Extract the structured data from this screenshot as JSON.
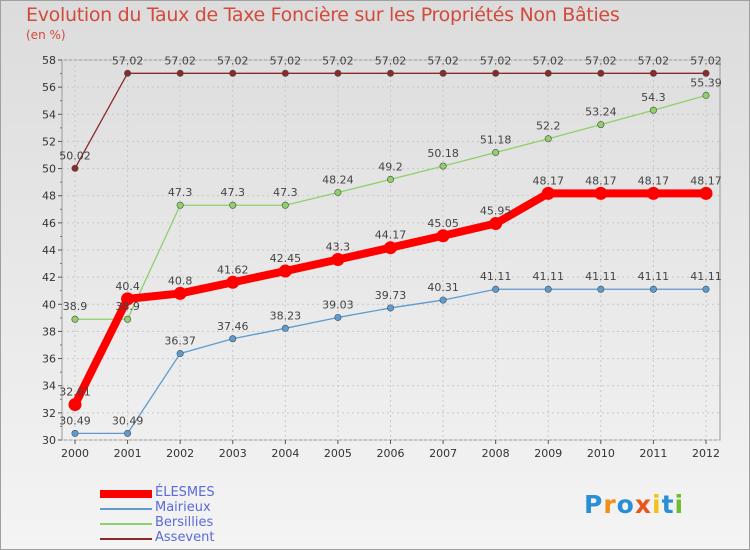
{
  "header": {
    "title": "Evolution du Taux de Taxe Foncière sur les Propriétés Non Bâties",
    "unit": "(en %)"
  },
  "brand": {
    "letters": [
      "P",
      "r",
      "o",
      "x",
      "i",
      "t",
      "i"
    ],
    "colors": [
      "#2a8fd6",
      "#f28c1a",
      "#2a8fd6",
      "#e8561c",
      "#f2c21a",
      "#2a8fd6",
      "#6cbf2a"
    ]
  },
  "chart_data": {
    "type": "line",
    "title": "Evolution du Taux de Taxe Foncière sur les Propriétés Non Bâties",
    "ylabel": "(en %)",
    "xlabel": "",
    "ylim": [
      30,
      58
    ],
    "yticks": [
      30,
      32,
      34,
      36,
      38,
      40,
      42,
      44,
      46,
      48,
      50,
      52,
      54,
      56,
      58
    ],
    "categories": [
      "2000",
      "2001",
      "2002",
      "2003",
      "2004",
      "2005",
      "2006",
      "2007",
      "2008",
      "2009",
      "2010",
      "2011",
      "2012"
    ],
    "grid": true,
    "legend": "bottom-left",
    "series": [
      {
        "name": "ÉLESMES",
        "color": "#ff0000",
        "values": [
          32.61,
          40.4,
          40.8,
          41.62,
          42.45,
          43.3,
          44.17,
          45.05,
          45.95,
          48.17,
          48.17,
          48.17,
          48.17
        ],
        "labels": [
          "32.61",
          "40.4",
          "40.8",
          "41.62",
          "42.45",
          "43.3",
          "44.17",
          "45.05",
          "45.95",
          "48.17",
          "48.17",
          "48.17",
          "48.17"
        ]
      },
      {
        "name": "Mairieux",
        "color": "#5d9bd0",
        "values": [
          30.49,
          30.49,
          36.37,
          37.46,
          38.23,
          39.03,
          39.73,
          40.31,
          41.11,
          41.11,
          41.11,
          41.11,
          41.11
        ],
        "labels": [
          "30.49",
          "30.49",
          "36.37",
          "37.46",
          "38.23",
          "39.03",
          "39.73",
          "40.31",
          "41.11",
          "41.11",
          "41.11",
          "41.11",
          "41.11"
        ]
      },
      {
        "name": "Bersillies",
        "color": "#8ed06a",
        "values": [
          38.9,
          38.9,
          47.3,
          47.3,
          47.3,
          48.24,
          49.2,
          50.18,
          51.18,
          52.2,
          53.24,
          54.3,
          55.39
        ],
        "labels": [
          "38.9",
          "38.9",
          "47.3",
          "47.3",
          "47.3",
          "48.24",
          "49.2",
          "50.18",
          "51.18",
          "52.2",
          "53.24",
          "54.3",
          "55.39"
        ]
      },
      {
        "name": "Assevent",
        "color": "#8a2a2a",
        "values": [
          50.02,
          57.02,
          57.02,
          57.02,
          57.02,
          57.02,
          57.02,
          57.02,
          57.02,
          57.02,
          57.02,
          57.02,
          57.02
        ],
        "labels": [
          "50.02",
          "57.02",
          "57.02",
          "57.02",
          "57.02",
          "57.02",
          "57.02",
          "57.02",
          "57.02",
          "57.02",
          "57.02",
          "57.02",
          "57.02"
        ]
      }
    ]
  }
}
